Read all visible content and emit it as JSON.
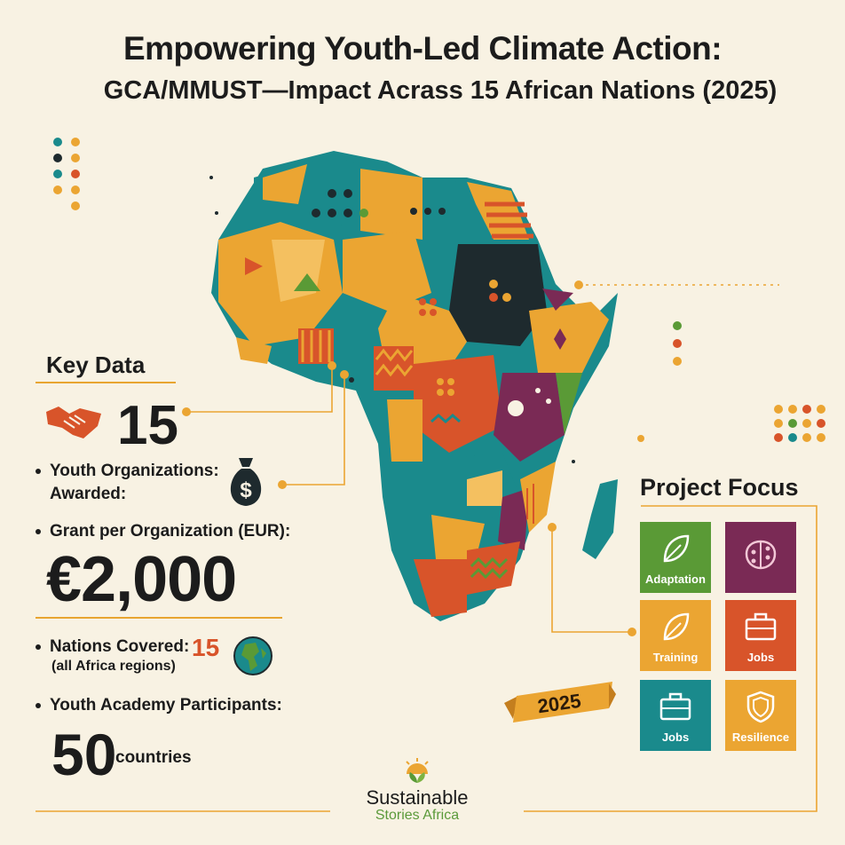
{
  "title_line1": "Empowering Youth-Led Climate Action:",
  "title_line2": "GCA/MMUST—Impact Acrass 15 African Nations (2025)",
  "key_data": {
    "heading": "Key Data",
    "youth_orgs_number": "15",
    "youth_orgs_label_1": "Youth Organizations:",
    "youth_orgs_label_2": "Awarded:",
    "grant_label": "Grant per Organization (EUR):",
    "grant_value": "€2,000",
    "nations_label": "Nations Covered:",
    "nations_value": "15",
    "nations_sub": "(all Africa regions)",
    "academy_label": "Youth Academy Participants:",
    "academy_value": "50",
    "academy_unit": "countries"
  },
  "project_focus": {
    "heading": "Project Focus",
    "tiles": [
      {
        "label": "Adaptation",
        "color": "#5a9a36",
        "icon": "leaf-icon"
      },
      {
        "label": "",
        "color": "#7a2a55",
        "icon": "brain-icon"
      },
      {
        "label": "Training",
        "color": "#eba532",
        "icon": "leaf-icon"
      },
      {
        "label": "Jobs",
        "color": "#d8542a",
        "icon": "briefcase-icon"
      },
      {
        "label": "Jobs",
        "color": "#1a8a8c",
        "icon": "briefcase-icon"
      },
      {
        "label": "Resilience",
        "color": "#eba532",
        "icon": "shield-icon"
      }
    ]
  },
  "year_ribbon": "2025",
  "logo": {
    "line1": "Sustainable",
    "line2": "Stories Africa"
  },
  "colors": {
    "teal": "#1a8a8c",
    "orange": "#eba532",
    "red": "#d8542a",
    "green": "#5a9a36",
    "plum": "#7a2a55",
    "dark": "#1e2a2e"
  }
}
